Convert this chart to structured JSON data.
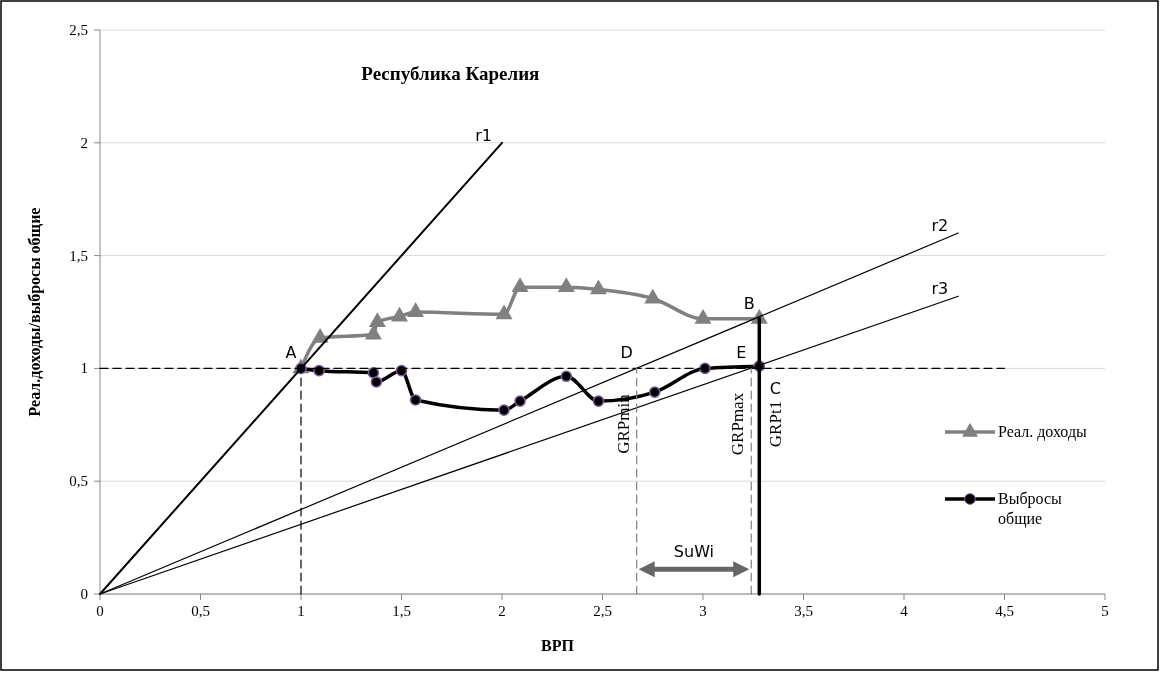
{
  "chart_data": {
    "type": "line",
    "title": "Республика Карелия",
    "xlabel": "ВРП",
    "ylabel": "Реал.доходы/выбросы общие",
    "xlim": [
      0,
      5
    ],
    "xticks": [
      0,
      {
        "value": 0.5,
        "label": "0,5"
      },
      1,
      {
        "value": 1.5,
        "label": "1,5"
      },
      2,
      {
        "value": 2.5,
        "label": "2,5"
      },
      3,
      {
        "value": 3.5,
        "label": "3,5"
      },
      4,
      {
        "value": 4.5,
        "label": "4,5"
      },
      5
    ],
    "ylim": [
      0,
      2.5
    ],
    "yticks": [
      0,
      {
        "value": 0.5,
        "label": "0,5"
      },
      1,
      {
        "value": 1.5,
        "label": "1,5"
      },
      2,
      {
        "value": 2.5,
        "label": "2,5"
      }
    ],
    "grid": "y",
    "legend": "right",
    "series": [
      {
        "name": "Реал. доходы",
        "color": "#808080",
        "marker": "triangle",
        "x": [
          1,
          1.095,
          1.36,
          1.38,
          1.49,
          1.57,
          2.01,
          2.09,
          2.32,
          2.48,
          2.75,
          3.0,
          3.28
        ],
        "values": [
          1,
          1.135,
          1.15,
          1.205,
          1.23,
          1.25,
          1.24,
          1.36,
          1.36,
          1.35,
          1.31,
          1.22,
          1.22
        ]
      },
      {
        "name": "Выбросы общие",
        "color": "#000000",
        "marker": "circle",
        "x": [
          1,
          1.09,
          1.36,
          1.375,
          1.5,
          1.57,
          2.01,
          2.09,
          2.32,
          2.48,
          2.76,
          3.01,
          3.28
        ],
        "values": [
          1,
          0.99,
          0.98,
          0.94,
          0.99,
          0.86,
          0.815,
          0.855,
          0.965,
          0.855,
          0.895,
          1.0,
          1.01
        ]
      },
      {
        "name": "r1",
        "color": "#000000",
        "marker": "none",
        "x": [
          0,
          2
        ],
        "values": [
          0,
          2
        ]
      },
      {
        "name": "r2",
        "color": "#000000",
        "marker": "none",
        "x": [
          0,
          4.27
        ],
        "values": [
          0,
          1.6
        ]
      },
      {
        "name": "r3",
        "color": "#000000",
        "marker": "none",
        "x": [
          0,
          4.27
        ],
        "values": [
          0,
          1.32
        ]
      },
      {
        "color": "#000000",
        "marker": "none",
        "line_style": "dashed",
        "x": [
          0,
          4.5
        ],
        "values": [
          1,
          1
        ]
      },
      {
        "color": "#000000",
        "marker": "none",
        "line_style": "dashed",
        "x": [
          1,
          1
        ],
        "values": [
          0,
          1
        ]
      },
      {
        "name": "GRPmin",
        "color": "#808080",
        "marker": "none",
        "line_style": "dashed",
        "x": [
          2.67,
          2.67
        ],
        "values": [
          0,
          1
        ]
      },
      {
        "name": "GRPmax",
        "color": "#808080",
        "marker": "none",
        "line_style": "dashed",
        "x": [
          3.24,
          3.24
        ],
        "values": [
          0,
          1
        ]
      },
      {
        "name": "GRPt1",
        "color": "#000000",
        "marker": "none",
        "x": [
          3.28,
          3.28
        ],
        "values": [
          0,
          1.22
        ]
      }
    ],
    "annotations": [
      {
        "text": "A",
        "x": 1,
        "y": 1
      },
      {
        "text": "B",
        "x": 3.28,
        "y": 1.22
      },
      {
        "text": "C",
        "x": 3.28,
        "y": 1
      },
      {
        "text": "D",
        "x": 2.67,
        "y": 1
      },
      {
        "text": "E",
        "x": 3.24,
        "y": 1
      },
      "SuWi"
    ]
  }
}
